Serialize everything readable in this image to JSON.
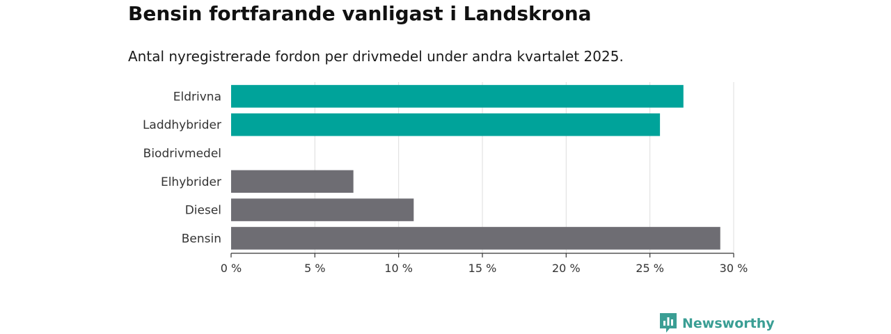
{
  "header": {
    "title": "Bensin fortfarande vanligast i Landskrona",
    "subtitle": "Antal nyregistrerade fordon per drivmedel under andra kvartalet 2025."
  },
  "chart_data": {
    "type": "bar",
    "orientation": "horizontal",
    "categories": [
      "Eldrivna",
      "Laddhybrider",
      "Biodrivmedel",
      "Elhybrider",
      "Diesel",
      "Bensin"
    ],
    "values": [
      27.0,
      25.6,
      0,
      7.3,
      10.9,
      29.2
    ],
    "bar_colors": [
      "#00a39a",
      "#00a39a",
      "#00a39a",
      "#6e6d73",
      "#6e6d73",
      "#6e6d73"
    ],
    "x_ticks": [
      0,
      5,
      10,
      15,
      20,
      25,
      30
    ],
    "x_tick_labels": [
      "0 %",
      "5 %",
      "10 %",
      "15 %",
      "20 %",
      "25 %",
      "30 %"
    ],
    "xlim": [
      0,
      30
    ],
    "grid": true,
    "xlabel": "",
    "ylabel": ""
  },
  "brand": {
    "name": "Newsworthy",
    "icon": "newsworthy-logo-icon",
    "color": "#3a9e94"
  }
}
